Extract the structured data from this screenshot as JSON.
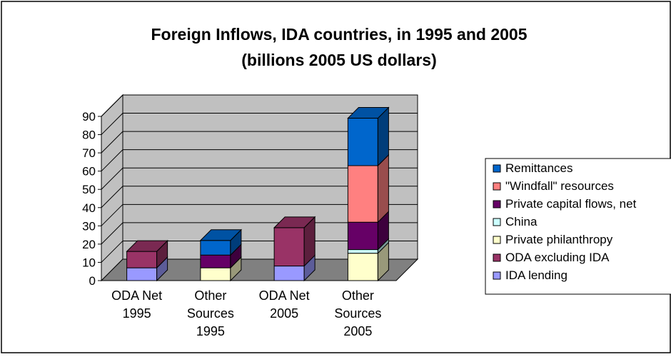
{
  "chart_data": {
    "type": "bar",
    "stacked": true,
    "three_d": true,
    "title_line1": "Foreign Inflows, IDA countries, in 1995 and 2005",
    "title_line2": "(billions 2005 US dollars)",
    "categories": [
      [
        "ODA Net",
        "1995"
      ],
      [
        "Other",
        "Sources",
        "1995"
      ],
      [
        "ODA Net",
        "2005"
      ],
      [
        "Other",
        "Sources",
        "2005"
      ]
    ],
    "ylim": [
      0,
      90
    ],
    "yticks": [
      0,
      10,
      20,
      30,
      40,
      50,
      60,
      70,
      80,
      90
    ],
    "grid": true,
    "legend_position": "right",
    "series": [
      {
        "name": "IDA lending",
        "color": "#9999ff",
        "values": [
          7,
          0,
          8,
          0
        ]
      },
      {
        "name": "ODA excluding IDA",
        "color": "#993366",
        "values": [
          9,
          0,
          21,
          0
        ]
      },
      {
        "name": "Private philanthropy",
        "color": "#ffffcc",
        "values": [
          0,
          7,
          0,
          15
        ]
      },
      {
        "name": "China",
        "color": "#ccffff",
        "values": [
          0,
          0,
          0,
          2
        ]
      },
      {
        "name": "Private capital flows, net",
        "color": "#660066",
        "values": [
          0,
          7,
          0,
          15
        ]
      },
      {
        "name": "\"Windfall\" resources",
        "color": "#ff8080",
        "values": [
          0,
          0,
          0,
          31
        ]
      },
      {
        "name": "Remittances",
        "color": "#0066cc",
        "values": [
          0,
          8,
          0,
          26
        ]
      }
    ],
    "legend_order": [
      "Remittances",
      "\"Windfall\" resources",
      "Private capital flows, net",
      "China",
      "Private philanthropy",
      "ODA excluding IDA",
      "IDA lending"
    ]
  }
}
